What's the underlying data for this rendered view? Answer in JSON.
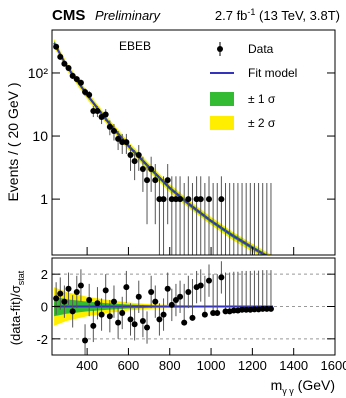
{
  "chart_data": [
    {
      "type": "scatter",
      "log_y": true,
      "cms": "CMS",
      "prelim": "Preliminary",
      "lumi": "2.7 fb",
      "lumi_sup": "-1",
      "lumi_rest": " (13 TeV, 3.8T)",
      "category": "EBEB",
      "y_label": "Events / ( 20 GeV )",
      "xlim": [
        230,
        1600
      ],
      "xticks": [
        400,
        600,
        800,
        1000,
        1200,
        1400,
        1600
      ],
      "ylim": [
        0.13,
        480
      ],
      "yticks": [
        1,
        10,
        {
          "value": 100,
          "label": "10²"
        }
      ],
      "x": [
        250,
        270,
        290,
        310,
        330,
        350,
        370,
        390,
        410,
        430,
        450,
        470,
        490,
        510,
        530,
        550,
        570,
        590,
        610,
        630,
        650,
        670,
        690,
        710,
        730,
        750,
        770,
        790,
        810,
        830,
        850,
        870,
        890,
        910,
        930,
        950,
        970,
        990,
        1010,
        1030,
        1050,
        1070,
        1090,
        1110,
        1130,
        1150,
        1170,
        1190,
        1210,
        1230,
        1250,
        1270,
        1290
      ],
      "series": [
        {
          "name": "Data",
          "color": "#000000",
          "values": [
            260,
            180,
            140,
            120,
            90,
            80,
            70,
            50,
            45,
            25,
            25,
            20,
            22,
            14,
            12,
            9,
            8,
            8,
            5,
            4,
            5,
            3,
            2,
            3,
            2,
            1,
            1,
            2,
            1,
            1,
            1,
            0,
            1,
            0,
            1,
            1,
            0,
            1,
            0,
            0,
            1,
            0,
            0,
            0,
            0,
            0,
            0,
            0,
            0,
            0,
            0,
            0,
            0
          ],
          "errors": [
            16,
            13,
            12,
            11,
            9.5,
            9,
            8.4,
            7,
            6.7,
            5,
            5,
            4.5,
            4.7,
            3.7,
            3.5,
            3,
            2.8,
            2.8,
            2.2,
            2,
            2.2,
            1.7,
            1.6,
            1.7,
            1.6,
            1.3,
            1.3,
            1.6,
            1.3,
            1.3,
            1.3,
            1.8,
            1.3,
            1.8,
            1.3,
            1.3,
            1.8,
            1.3,
            1.8,
            1.8,
            1.3,
            1.8,
            1.8,
            1.8,
            1.8,
            1.8,
            1.8,
            1.8,
            1.8,
            1.8,
            1.8,
            1.8,
            1.8
          ]
        }
      ],
      "fit": {
        "name": "Fit model",
        "color": "#3333bb",
        "x": [
          240,
          300,
          400,
          500,
          600,
          700,
          800,
          900,
          1000,
          1100,
          1200,
          1300
        ],
        "values": [
          300,
          130,
          45,
          17,
          7,
          3.2,
          1.5,
          0.8,
          0.45,
          0.27,
          0.17,
          0.11
        ]
      },
      "bands": [
        {
          "name": "± 2 σ",
          "color": "#ffee00",
          "lo": [
            258,
            112,
            38.7,
            14.6,
            6.0,
            2.75,
            1.29,
            0.69,
            0.39,
            0.23,
            0.146,
            0.095
          ],
          "hi": [
            345,
            150,
            51.8,
            19.6,
            8.1,
            3.68,
            1.73,
            0.92,
            0.52,
            0.31,
            0.196,
            0.127
          ]
        },
        {
          "name": "± 1 σ",
          "color": "#33bb33",
          "lo": [
            279,
            121,
            41.9,
            15.8,
            6.5,
            2.98,
            1.4,
            0.74,
            0.42,
            0.25,
            0.158,
            0.102
          ],
          "hi": [
            321,
            139,
            48.2,
            18.2,
            7.5,
            3.42,
            1.6,
            0.86,
            0.48,
            0.29,
            0.182,
            0.118
          ]
        }
      ]
    },
    {
      "type": "scatter",
      "y_label": "(data-fit)/σ",
      "y_label_sub": "stat",
      "x_label": "m",
      "x_label_sub": "γ γ",
      "x_label_rest": " (GeV)",
      "xlim": [
        230,
        1600
      ],
      "xticks": [
        400,
        600,
        800,
        1000,
        1200,
        1400,
        1600
      ],
      "ylim": [
        -3,
        3
      ],
      "yticks": [
        -2,
        0,
        2
      ],
      "grid": true,
      "x": [
        250,
        270,
        290,
        310,
        330,
        350,
        370,
        390,
        410,
        430,
        450,
        470,
        490,
        510,
        530,
        550,
        570,
        590,
        610,
        630,
        650,
        670,
        690,
        710,
        730,
        750,
        770,
        790,
        810,
        830,
        850,
        870,
        890,
        910,
        930,
        950,
        970,
        990,
        1010,
        1030,
        1050,
        1070,
        1090,
        1110,
        1130,
        1150,
        1170,
        1190,
        1210,
        1230,
        1250,
        1270,
        1290
      ],
      "values": [
        0.5,
        0.8,
        0.3,
        1.1,
        -0.3,
        0.9,
        1.3,
        -2.1,
        0.4,
        -1.2,
        0.2,
        -0.5,
        1.0,
        -0.6,
        0.3,
        -1.0,
        -0.4,
        1.2,
        -0.8,
        -1.1,
        0.6,
        -0.9,
        -1.3,
        0.9,
        0.3,
        -0.8,
        -0.5,
        1.1,
        0.1,
        0.4,
        0.6,
        -1.0,
        0.9,
        -0.7,
        1.2,
        1.3,
        -0.5,
        1.6,
        -0.4,
        -0.4,
        1.8,
        -0.3,
        -0.3,
        -0.25,
        -0.25,
        -0.2,
        -0.2,
        -0.2,
        -0.18,
        -0.18,
        -0.15,
        -0.15,
        -0.15
      ],
      "errors_low": [
        1,
        1,
        1,
        1,
        1,
        1,
        1,
        1,
        1,
        1,
        1,
        1,
        1,
        1,
        1,
        1,
        1,
        1,
        1,
        1,
        1,
        1,
        1,
        1,
        1,
        1,
        1,
        1,
        1,
        1,
        1,
        0,
        1,
        0,
        1,
        1,
        0,
        1,
        0,
        0,
        1,
        0,
        0,
        0,
        0,
        0,
        0,
        0,
        0,
        0,
        0,
        0,
        0
      ],
      "errors_high": [
        1,
        1,
        1,
        1,
        1,
        1,
        1,
        1,
        1,
        1,
        1,
        1,
        1,
        1,
        1,
        1,
        1,
        1,
        1,
        1,
        1,
        1,
        1,
        1,
        1,
        1,
        1,
        1,
        1,
        1,
        1,
        2.4,
        1,
        2.4,
        1,
        1,
        2.4,
        1,
        2.4,
        2.4,
        1,
        2.4,
        2.4,
        2.4,
        2.4,
        2.4,
        2.4,
        2.4,
        2.4,
        2.4,
        2.4,
        2.4,
        2.4
      ],
      "band_x": [
        240,
        300,
        400,
        500,
        600,
        700,
        800,
        900,
        1000,
        1100,
        1200,
        1300
      ],
      "bands": [
        {
          "color": "#ffee00",
          "half_width": [
            1.2,
            0.9,
            0.6,
            0.4,
            0.25,
            0.15,
            0.1,
            0.07,
            0.05,
            0.04,
            0.03,
            0.03
          ]
        },
        {
          "color": "#33bb33",
          "half_width": [
            0.6,
            0.45,
            0.3,
            0.2,
            0.12,
            0.08,
            0.05,
            0.035,
            0.025,
            0.02,
            0.015,
            0.015
          ]
        }
      ]
    }
  ]
}
